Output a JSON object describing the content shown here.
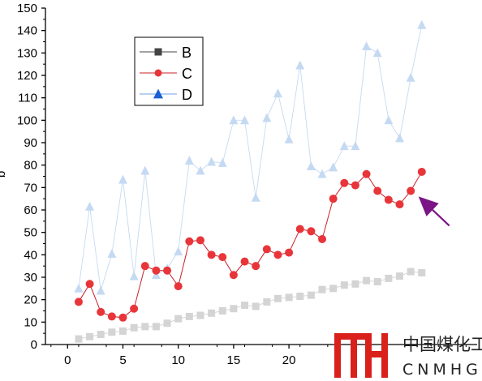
{
  "chart_data": {
    "type": "line",
    "title": "",
    "xlabel": "",
    "ylabel": "b",
    "xlim": [
      -2,
      37
    ],
    "ylim": [
      0,
      150
    ],
    "x_ticks": [
      0,
      5,
      10,
      15,
      20
    ],
    "y_ticks": [
      0,
      10,
      20,
      30,
      40,
      50,
      60,
      70,
      80,
      90,
      100,
      110,
      120,
      130,
      140,
      150
    ],
    "grid": false,
    "legend_position": "top-left",
    "x": [
      1,
      2,
      3,
      4,
      5,
      6,
      7,
      8,
      9,
      10,
      11,
      12,
      13,
      14,
      15,
      16,
      17,
      18,
      19,
      20,
      21,
      22,
      23,
      24,
      25,
      26,
      27,
      28,
      29,
      30,
      31,
      32
    ],
    "series": [
      {
        "name": "B",
        "marker": "square",
        "color": "#d4d4d4",
        "legend_color": "#444444",
        "values": [
          2.5,
          3.5,
          4.5,
          5.5,
          6,
          7.5,
          8,
          8,
          9.5,
          11.5,
          12.5,
          13,
          14,
          15,
          16,
          17.5,
          17,
          19,
          20.5,
          21,
          21.5,
          22,
          24.5,
          25,
          26.5,
          27,
          28.5,
          28,
          29.5,
          30.5,
          32.5,
          32
        ]
      },
      {
        "name": "C",
        "marker": "circle",
        "color": "#e8353a",
        "line_color": "#c8202a",
        "values": [
          19,
          27,
          14.5,
          12.5,
          12,
          16,
          35,
          33,
          33,
          26,
          46,
          46.5,
          40,
          39,
          31,
          37,
          35,
          42.5,
          40,
          41,
          51.5,
          50.5,
          47,
          65,
          72,
          71,
          76,
          68.5,
          64.5,
          62.5,
          68.5,
          77
        ]
      },
      {
        "name": "D",
        "marker": "triangle",
        "color": "#c5daf2",
        "legend_color": "#1a5fd6",
        "values": [
          25,
          61.5,
          24,
          40.5,
          73.5,
          30.5,
          77.5,
          31,
          34,
          41.5,
          82,
          77.5,
          81.5,
          81,
          100,
          100,
          65.5,
          101,
          112,
          91.5,
          124.5,
          79.5,
          76,
          79,
          88.5,
          88.5,
          133,
          130,
          100,
          92,
          119,
          142.5
        ]
      }
    ],
    "annotations": [
      {
        "type": "arrow",
        "color": "#7b1485",
        "points_to": {
          "x": 31.7,
          "y": 66
        }
      }
    ]
  },
  "watermark": {
    "logo_text": "MH",
    "chinese": "中国煤化工",
    "english": "CNMHG",
    "color": "#d9201b"
  }
}
